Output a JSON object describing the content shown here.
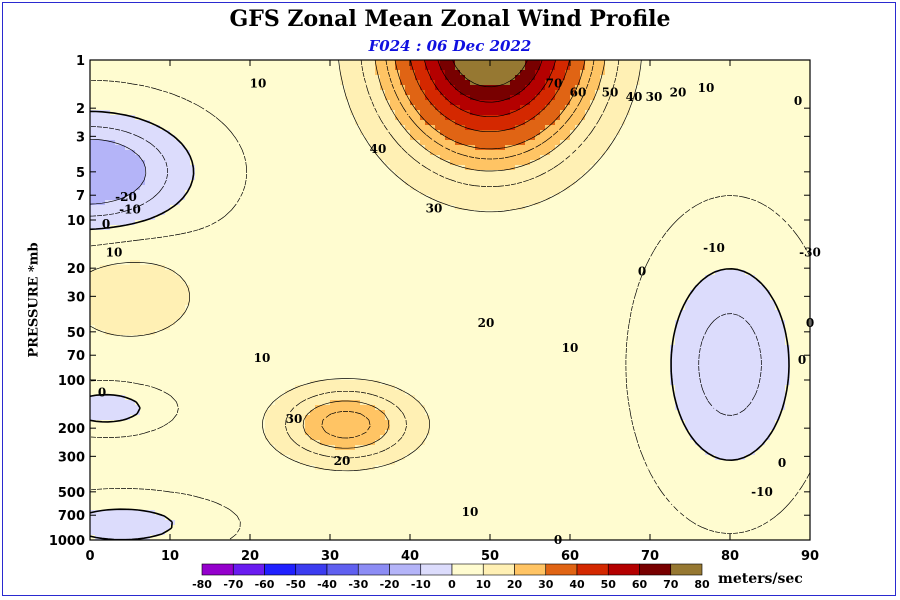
{
  "chart_data": {
    "type": "heatmap",
    "title": "GFS Zonal Mean Zonal Wind Profile",
    "subtitle": "F024 : 06 Dec 2022",
    "xlabel": "",
    "ylabel": "PRESSURE *mb",
    "x_ticks": [
      "0",
      "10",
      "20",
      "30",
      "40",
      "50",
      "60",
      "70",
      "80",
      "90"
    ],
    "x_values": [
      0,
      10,
      20,
      30,
      40,
      50,
      60,
      70,
      80,
      90
    ],
    "xlim": [
      0,
      90
    ],
    "y_ticks": [
      "1",
      "2",
      "3",
      "5",
      "7",
      "10",
      "20",
      "30",
      "50",
      "70",
      "100",
      "200",
      "300",
      "500",
      "700",
      "1000"
    ],
    "y_values": [
      1,
      2,
      3,
      5,
      7,
      10,
      20,
      30,
      50,
      70,
      100,
      200,
      300,
      500,
      700,
      1000
    ],
    "ylim": [
      1000,
      1
    ],
    "y_scale": "log",
    "colorbar": {
      "label": "meters/sec",
      "levels": [
        -80,
        -70,
        -60,
        -50,
        -40,
        -30,
        -20,
        -10,
        0,
        10,
        20,
        30,
        40,
        50,
        60,
        70,
        80
      ],
      "level_labels": [
        "-80",
        "-70",
        "-60",
        "-50",
        "-40",
        "-30",
        "-20",
        "-10",
        "0",
        "10",
        "20",
        "30",
        "40",
        "50",
        "60",
        "70",
        "80"
      ],
      "colors": [
        "#9400cc",
        "#6a1cf0",
        "#2020ff",
        "#3c3cf0",
        "#6060f0",
        "#8c8cf4",
        "#b4b4f8",
        "#dcdcfc",
        "#ffffff",
        "#fffcd0",
        "#fff0b4",
        "#ffc464",
        "#e06414",
        "#d42800",
        "#b40000",
        "#780000",
        "#967832"
      ]
    },
    "contour_labels": [
      {
        "lat": 21,
        "p": 1.4,
        "text": "10"
      },
      {
        "lat": 58,
        "p": 1.4,
        "text": "70"
      },
      {
        "lat": 61,
        "p": 1.6,
        "text": "60"
      },
      {
        "lat": 65,
        "p": 1.6,
        "text": "50"
      },
      {
        "lat": 68,
        "p": 1.7,
        "text": "40"
      },
      {
        "lat": 70.5,
        "p": 1.7,
        "text": "30"
      },
      {
        "lat": 73.5,
        "p": 1.6,
        "text": "20"
      },
      {
        "lat": 77,
        "p": 1.5,
        "text": "10"
      },
      {
        "lat": 88.5,
        "p": 1.8,
        "text": "0"
      },
      {
        "lat": 36,
        "p": 3.6,
        "text": "40"
      },
      {
        "lat": 43,
        "p": 8.5,
        "text": "30"
      },
      {
        "lat": 4.5,
        "p": 7.2,
        "text": "-20"
      },
      {
        "lat": 5,
        "p": 8.6,
        "text": "-10"
      },
      {
        "lat": 2,
        "p": 10.6,
        "text": "0"
      },
      {
        "lat": 3,
        "p": 16,
        "text": "10"
      },
      {
        "lat": 49.5,
        "p": 44,
        "text": "20"
      },
      {
        "lat": 60,
        "p": 63,
        "text": "10"
      },
      {
        "lat": 69,
        "p": 21,
        "text": "0"
      },
      {
        "lat": 78,
        "p": 15,
        "text": "-10"
      },
      {
        "lat": 90,
        "p": 16,
        "text": "-30"
      },
      {
        "lat": 90,
        "p": 44,
        "text": "0"
      },
      {
        "lat": 89,
        "p": 75,
        "text": "0"
      },
      {
        "lat": 21.5,
        "p": 73,
        "text": "10"
      },
      {
        "lat": 1.5,
        "p": 120,
        "text": "0"
      },
      {
        "lat": 25.5,
        "p": 175,
        "text": "30"
      },
      {
        "lat": 31.5,
        "p": 320,
        "text": "20"
      },
      {
        "lat": 47.5,
        "p": 670,
        "text": "10"
      },
      {
        "lat": 58.5,
        "p": 1000,
        "text": "0"
      },
      {
        "lat": 86.5,
        "p": 330,
        "text": "0"
      },
      {
        "lat": 84,
        "p": 500,
        "text": "-10"
      }
    ]
  }
}
